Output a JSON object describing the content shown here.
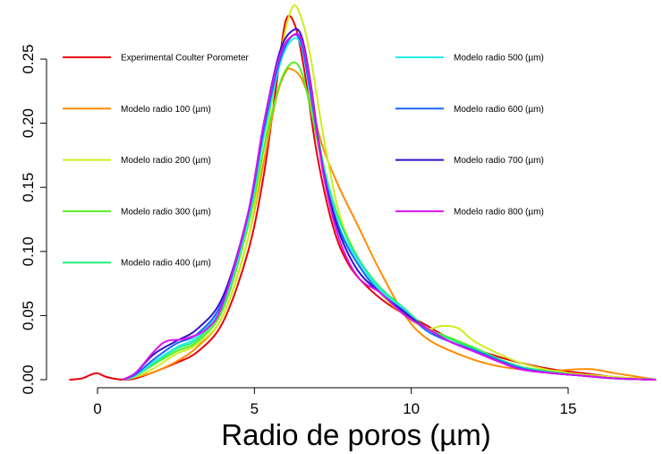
{
  "chart_data": {
    "type": "line",
    "title": "",
    "xlabel": "Radio de poros (µm)",
    "ylabel": "",
    "xlim": [
      -1.5,
      18
    ],
    "ylim": [
      0,
      0.285
    ],
    "x_ticks": [
      0,
      5,
      10,
      15
    ],
    "x_tick_labels": [
      "0",
      "5",
      "10",
      "15"
    ],
    "y_ticks": [
      0,
      0.05,
      0.1,
      0.15,
      0.2,
      0.25
    ],
    "y_tick_labels": [
      "0.00",
      "0.05",
      "0.10",
      "0.15",
      "0.20",
      "0.25"
    ],
    "grid": false,
    "legend_position": "top (two columns)",
    "series": [
      {
        "name": "Experimental Coulter Porometer",
        "color": "#e8000b",
        "x": [
          -0.9,
          -0.5,
          -0.2,
          0,
          0.3,
          0.8,
          1.2,
          1.8,
          2.5,
          3.2,
          4,
          4.8,
          5.3,
          5.7,
          6,
          6.3,
          6.6,
          7,
          7.5,
          8,
          8.7,
          9.5,
          10.3,
          11,
          11.8,
          12.5,
          13.5,
          14.5,
          15.5,
          16.5,
          17.8
        ],
        "y": [
          0,
          0.001,
          0.004,
          0.005,
          0.002,
          0,
          0.001,
          0.006,
          0.013,
          0.022,
          0.045,
          0.1,
          0.16,
          0.23,
          0.28,
          0.276,
          0.24,
          0.175,
          0.12,
          0.09,
          0.07,
          0.055,
          0.045,
          0.035,
          0.026,
          0.02,
          0.013,
          0.008,
          0.005,
          0.002,
          0
        ]
      },
      {
        "name": "Modelo radio 100 (µm)",
        "color": "#ff8c00",
        "x": [
          0.8,
          1.2,
          1.8,
          2.5,
          3.2,
          4,
          4.8,
          5.3,
          5.7,
          6,
          6.2,
          6.5,
          6.8,
          7.2,
          7.7,
          8.3,
          9,
          9.8,
          10.5,
          11.5,
          12.5,
          13.5,
          14.5,
          15.2,
          15.8,
          16.5,
          17.8
        ],
        "y": [
          0,
          0.002,
          0.006,
          0.014,
          0.026,
          0.05,
          0.11,
          0.17,
          0.22,
          0.24,
          0.242,
          0.235,
          0.215,
          0.18,
          0.15,
          0.12,
          0.085,
          0.05,
          0.032,
          0.02,
          0.012,
          0.008,
          0.007,
          0.008,
          0.008,
          0.005,
          0
        ]
      },
      {
        "name": "Modelo radio 200 (µm)",
        "color": "#ccef1a",
        "x": [
          0.8,
          1.2,
          1.8,
          2.5,
          3.2,
          4,
          4.8,
          5.3,
          5.8,
          6.2,
          6.5,
          6.8,
          7.2,
          7.7,
          8.3,
          9,
          9.8,
          10.5,
          11,
          11.5,
          12,
          12.8,
          13.5,
          14.5,
          15.5,
          16.5,
          17.8
        ],
        "y": [
          0,
          0.002,
          0.009,
          0.02,
          0.028,
          0.05,
          0.11,
          0.18,
          0.25,
          0.29,
          0.282,
          0.25,
          0.19,
          0.13,
          0.095,
          0.068,
          0.05,
          0.04,
          0.042,
          0.04,
          0.03,
          0.02,
          0.013,
          0.007,
          0.004,
          0.002,
          0
        ]
      },
      {
        "name": "Modelo radio 300 (µm)",
        "color": "#55ee22",
        "x": [
          0.8,
          1.2,
          1.8,
          2.5,
          3.2,
          4,
          4.8,
          5.3,
          5.8,
          6.2,
          6.5,
          6.8,
          7.2,
          7.7,
          8.3,
          9,
          9.8,
          10.5,
          11.2,
          12,
          12.8,
          13.5,
          14.5,
          15.5,
          16.5,
          17.8
        ],
        "y": [
          0,
          0.003,
          0.012,
          0.022,
          0.03,
          0.055,
          0.12,
          0.18,
          0.23,
          0.247,
          0.24,
          0.21,
          0.165,
          0.125,
          0.095,
          0.072,
          0.055,
          0.04,
          0.033,
          0.025,
          0.016,
          0.01,
          0.006,
          0.003,
          0.001,
          0
        ]
      },
      {
        "name": "Modelo radio 400 (µm)",
        "color": "#22ee77",
        "x": [
          0.8,
          1.2,
          1.8,
          2.5,
          3.2,
          4,
          4.8,
          5.3,
          5.8,
          6.2,
          6.5,
          6.8,
          7.2,
          7.7,
          8.3,
          9,
          9.8,
          10.5,
          11.2,
          12,
          12.8,
          13.5,
          14.5,
          15.5,
          16.5,
          17.8
        ],
        "y": [
          0,
          0.003,
          0.013,
          0.024,
          0.032,
          0.058,
          0.125,
          0.19,
          0.245,
          0.268,
          0.262,
          0.225,
          0.168,
          0.125,
          0.095,
          0.072,
          0.055,
          0.04,
          0.032,
          0.024,
          0.016,
          0.01,
          0.006,
          0.003,
          0.001,
          0
        ]
      },
      {
        "name": "Modelo radio 500 (µm)",
        "color": "#22eeee",
        "x": [
          0.8,
          1.2,
          1.8,
          2.5,
          3.2,
          4,
          4.8,
          5.3,
          5.8,
          6.2,
          6.5,
          6.8,
          7.2,
          7.7,
          8.3,
          9,
          9.8,
          10.5,
          11.2,
          12,
          12.8,
          13.5,
          14.5,
          15.5,
          16.5,
          17.8
        ],
        "y": [
          0,
          0.003,
          0.014,
          0.025,
          0.034,
          0.06,
          0.125,
          0.19,
          0.245,
          0.265,
          0.26,
          0.22,
          0.165,
          0.12,
          0.093,
          0.07,
          0.054,
          0.038,
          0.03,
          0.023,
          0.015,
          0.009,
          0.005,
          0.003,
          0.001,
          0
        ]
      },
      {
        "name": "Modelo radio 600 (µm)",
        "color": "#1a66ff",
        "x": [
          0.8,
          1.2,
          1.8,
          2.5,
          3.2,
          4,
          4.8,
          5.3,
          5.8,
          6.2,
          6.5,
          6.8,
          7.2,
          7.7,
          8.3,
          9,
          9.8,
          10.5,
          11.2,
          12,
          12.8,
          13.5,
          14.5,
          15.5,
          16.5,
          17.8
        ],
        "y": [
          0,
          0.004,
          0.016,
          0.028,
          0.036,
          0.062,
          0.128,
          0.195,
          0.248,
          0.268,
          0.262,
          0.222,
          0.163,
          0.118,
          0.09,
          0.068,
          0.053,
          0.038,
          0.03,
          0.023,
          0.015,
          0.009,
          0.005,
          0.003,
          0.001,
          0
        ]
      },
      {
        "name": "Modelo radio 700 (µm)",
        "color": "#3311cc",
        "x": [
          0.8,
          1.2,
          1.8,
          2.5,
          3.2,
          4,
          4.8,
          5.3,
          5.8,
          6.2,
          6.5,
          6.8,
          7.2,
          7.7,
          8.3,
          9,
          9.8,
          10.5,
          11.2,
          12,
          12.8,
          13.5,
          14.5,
          15.5,
          16.5,
          17.8
        ],
        "y": [
          0,
          0.005,
          0.02,
          0.03,
          0.04,
          0.065,
          0.13,
          0.2,
          0.255,
          0.272,
          0.268,
          0.23,
          0.162,
          0.115,
          0.085,
          0.068,
          0.052,
          0.04,
          0.03,
          0.022,
          0.014,
          0.008,
          0.005,
          0.003,
          0.001,
          0
        ]
      },
      {
        "name": "Modelo radio 800 (µm)",
        "color": "#dd11ee",
        "x": [
          0.8,
          1.2,
          1.8,
          2.2,
          2.8,
          3.5,
          4,
          4.8,
          5.3,
          5.8,
          6.2,
          6.5,
          6.8,
          7.2,
          7.7,
          8.3,
          9,
          9.8,
          10.5,
          11.2,
          12,
          12.8,
          13.5,
          14.5,
          15.5,
          16.5,
          17.8
        ],
        "y": [
          0,
          0.005,
          0.022,
          0.03,
          0.032,
          0.04,
          0.06,
          0.13,
          0.2,
          0.252,
          0.268,
          0.265,
          0.228,
          0.16,
          0.11,
          0.08,
          0.068,
          0.05,
          0.04,
          0.03,
          0.022,
          0.014,
          0.008,
          0.005,
          0.003,
          0.001,
          0
        ]
      }
    ]
  }
}
